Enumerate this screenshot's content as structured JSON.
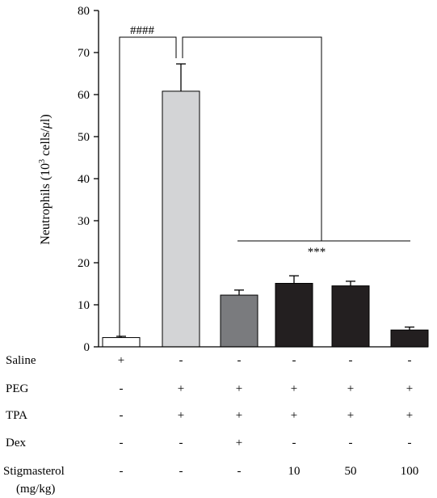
{
  "chart_data": {
    "type": "bar",
    "categories": [
      "Saline",
      "PEG + TPA",
      "PEG + TPA + Dex",
      "Stigmasterol 10",
      "Stigmasterol 50",
      "Stigmasterol 100"
    ],
    "values": [
      2.2,
      60.8,
      12.3,
      15.1,
      14.5,
      4.0
    ],
    "errors": [
      0.3,
      6.5,
      1.2,
      1.8,
      1.1,
      0.7
    ],
    "bar_colors": [
      "#ffffff",
      "#d3d4d6",
      "#7a7b7e",
      "#231f20",
      "#231f20",
      "#231f20"
    ],
    "ylabel_main": "Neutrophils (10",
    "ylabel_sup": "3",
    "ylabel_rest": " cells/",
    "ylabel_mu": "μ",
    "ylabel_end": "l)",
    "ylim": [
      0,
      80
    ],
    "yticks": [
      "0",
      "10",
      "20",
      "30",
      "40",
      "50",
      "60",
      "70",
      "80"
    ],
    "significance": {
      "hash": "####",
      "stars": "***"
    },
    "treatment_table": {
      "rows": [
        {
          "label": "Saline",
          "values": [
            "+",
            "-",
            "-",
            "-",
            "-",
            "-"
          ]
        },
        {
          "label": "PEG",
          "values": [
            "-",
            "+",
            "+",
            "+",
            "+",
            "+"
          ]
        },
        {
          "label": "TPA",
          "values": [
            "-",
            "+",
            "+",
            "+",
            "+",
            "+"
          ]
        },
        {
          "label": "Dex",
          "values": [
            "-",
            "-",
            "+",
            "-",
            "-",
            "-"
          ]
        },
        {
          "label": "Stigmasterol",
          "sublabel": "(mg/kg)",
          "values": [
            "-",
            "-",
            "-",
            "10",
            "50",
            "100"
          ]
        }
      ]
    }
  }
}
